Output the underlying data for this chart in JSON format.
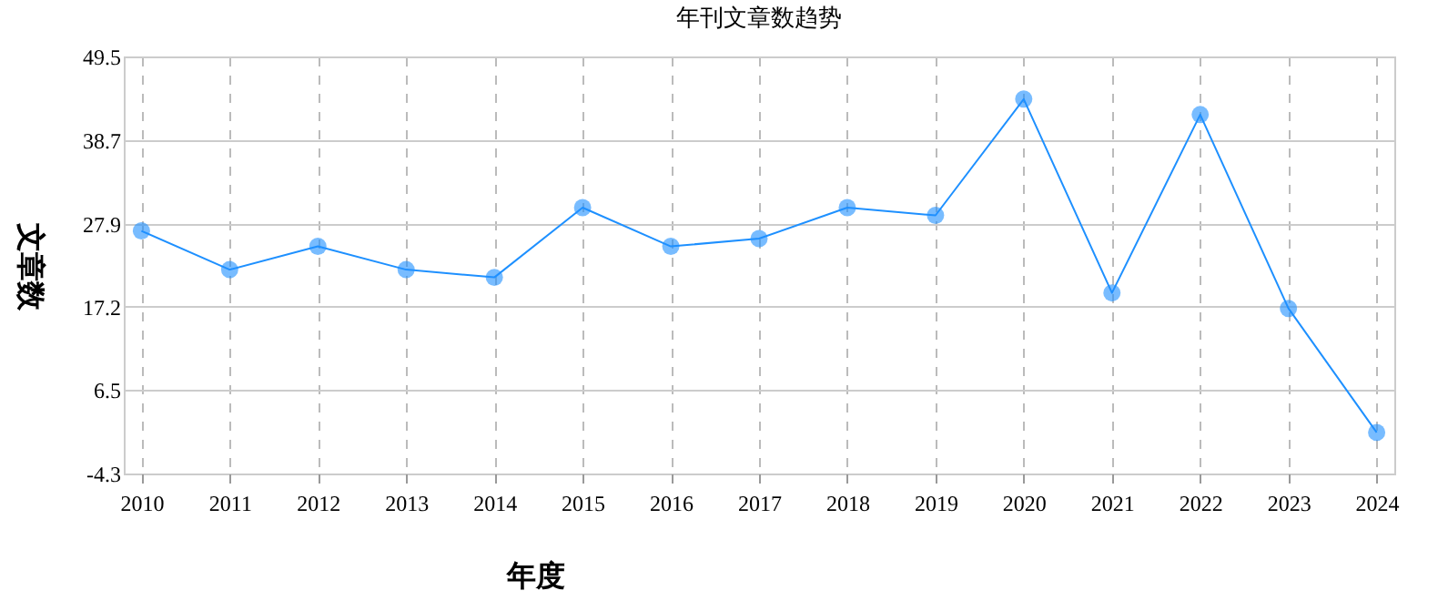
{
  "chart_data": {
    "type": "line",
    "title": "年刊文章数趋势",
    "xlabel": "年度",
    "ylabel": "文章数",
    "categories": [
      "2010",
      "2011",
      "2012",
      "2013",
      "2014",
      "2015",
      "2016",
      "2017",
      "2018",
      "2019",
      "2020",
      "2021",
      "2022",
      "2023",
      "2024"
    ],
    "series": [
      {
        "color": "#1e90ff",
        "values": [
          27,
          22,
          25,
          22,
          21,
          30,
          25,
          26,
          30,
          29,
          44,
          19,
          42,
          17,
          1
        ]
      }
    ],
    "ylim": [
      -4.3,
      49.5
    ],
    "yticks": [
      -4.3,
      6.5,
      17.2,
      27.9,
      38.7,
      49.5
    ],
    "grid": true,
    "marker": "circle",
    "line_style": "solid"
  }
}
